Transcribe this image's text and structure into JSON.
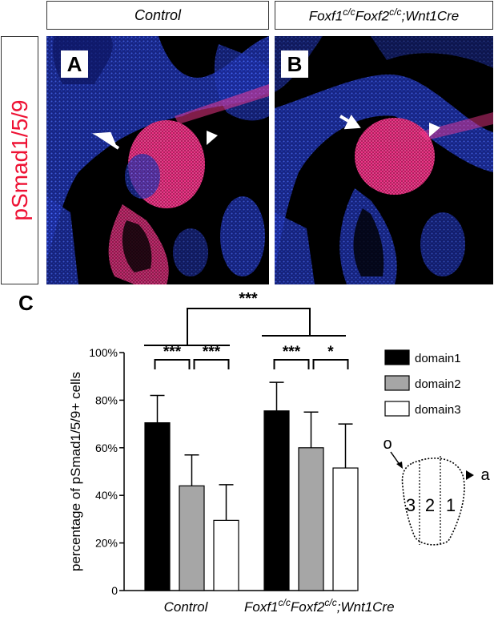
{
  "header": {
    "control_label": "Control",
    "mutant_label_parts": [
      "Foxf1",
      "c/c",
      "Foxf2",
      "c/c",
      ";Wnt1Cre"
    ]
  },
  "side_label": "pSmad1/5/9",
  "panels": [
    {
      "letter": "A"
    },
    {
      "letter": "B"
    }
  ],
  "colors": {
    "nuclei": "#2a4cff",
    "stain": "#ff2a8a",
    "side_label": "#ee1133"
  },
  "chart_data": {
    "type": "bar",
    "panel_letter": "C",
    "categories": [
      "Control",
      "Foxf1c/cFoxf2c/c;Wnt1Cre"
    ],
    "series": [
      {
        "name": "domain1",
        "color": "#000000",
        "values": [
          70.5,
          75.5
        ],
        "errors": [
          11.5,
          12
        ]
      },
      {
        "name": "domain2",
        "color": "#a6a6a6",
        "values": [
          44,
          60
        ],
        "errors": [
          13,
          15
        ]
      },
      {
        "name": "domain3",
        "color": "#ffffff",
        "values": [
          29.5,
          51.5
        ],
        "errors": [
          15,
          18.5
        ]
      }
    ],
    "ylabel": "percentage of pSmad1/5/9+ cells",
    "ylim": [
      0,
      100
    ],
    "yticks": [
      "0",
      "20%",
      "40%",
      "60%",
      "80%",
      "100%"
    ],
    "ytick_values": [
      0,
      20,
      40,
      60,
      80,
      100
    ],
    "significance": {
      "between_groups": "***",
      "control": [
        "***",
        "***"
      ],
      "mutant": [
        "***",
        "*"
      ]
    },
    "legend_position": "right",
    "schematic": {
      "labels": [
        "3",
        "2",
        "1"
      ],
      "arrow_left": "o",
      "arrow_right": "a"
    }
  }
}
